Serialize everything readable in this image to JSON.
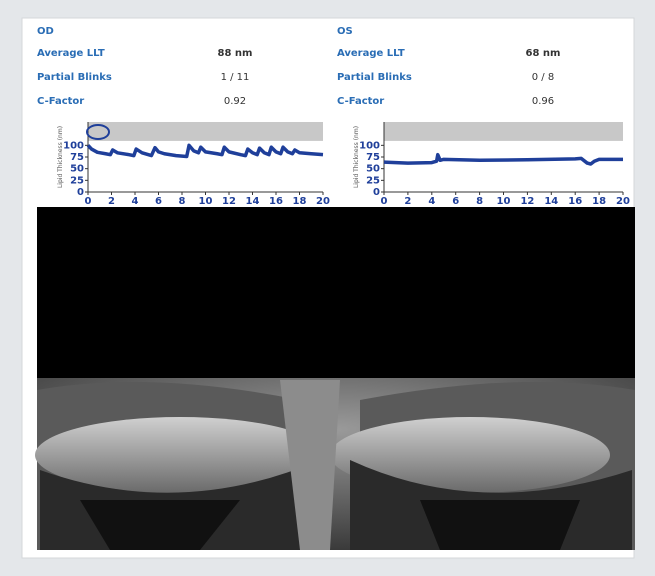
{
  "panels": [
    {
      "label": "OD",
      "rows": [
        {
          "label": "Average LLT",
          "value": "88 nm"
        },
        {
          "label": "Partial Blinks",
          "value": "1 / 11"
        },
        {
          "label": "C-Factor",
          "value": "0.92"
        }
      ]
    },
    {
      "label": "OS",
      "rows": [
        {
          "label": "Average LLT",
          "value": "68 nm"
        },
        {
          "label": "Partial Blinks",
          "value": "0 / 8"
        },
        {
          "label": "C-Factor",
          "value": "0.96"
        }
      ]
    }
  ],
  "chart_data": [
    {
      "type": "line",
      "y_label": "Lipid Thickness (nm)",
      "color": "#1f3f9a",
      "x": [
        0,
        0.3,
        0.8,
        1.5,
        1.9,
        2.1,
        2.5,
        3.5,
        3.9,
        4.1,
        4.6,
        5.4,
        5.7,
        6,
        6.5,
        7.5,
        8.4,
        8.6,
        9,
        9.4,
        9.6,
        10,
        11,
        11.4,
        11.6,
        12,
        13,
        13.4,
        13.6,
        14,
        14.4,
        14.6,
        15,
        15.4,
        15.6,
        16,
        16.4,
        16.6,
        17,
        17.4,
        17.6,
        18,
        19,
        20
      ],
      "values": [
        100,
        92,
        85,
        82,
        80,
        90,
        84,
        80,
        78,
        92,
        84,
        78,
        95,
        86,
        82,
        78,
        76,
        100,
        88,
        84,
        96,
        86,
        82,
        80,
        96,
        86,
        80,
        78,
        92,
        84,
        80,
        94,
        84,
        80,
        96,
        86,
        82,
        96,
        86,
        82,
        90,
        84,
        82,
        80
      ],
      "xlim": [
        0,
        20
      ],
      "xticks": [
        0,
        2,
        4,
        6,
        8,
        10,
        12,
        14,
        16,
        18,
        20
      ],
      "ylim": [
        0,
        150
      ],
      "yticks": [
        0,
        25,
        50,
        75,
        100
      ]
    },
    {
      "type": "line",
      "y_label": "Lipid Thickness (nm)",
      "color": "#1f3f9a",
      "x": [
        0,
        2,
        4,
        4.4,
        4.5,
        4.7,
        5,
        8,
        12,
        16,
        16.5,
        17,
        17.3,
        17.6,
        18,
        20
      ],
      "values": [
        64,
        62,
        63,
        66,
        80,
        68,
        70,
        68,
        69,
        71,
        72,
        62,
        60,
        66,
        70,
        70
      ],
      "xlim": [
        0,
        20
      ],
      "xticks": [
        0,
        2,
        4,
        6,
        8,
        10,
        12,
        14,
        16,
        18,
        20
      ],
      "ylim": [
        0,
        150
      ],
      "yticks": [
        0,
        25,
        50,
        75,
        100
      ]
    }
  ]
}
